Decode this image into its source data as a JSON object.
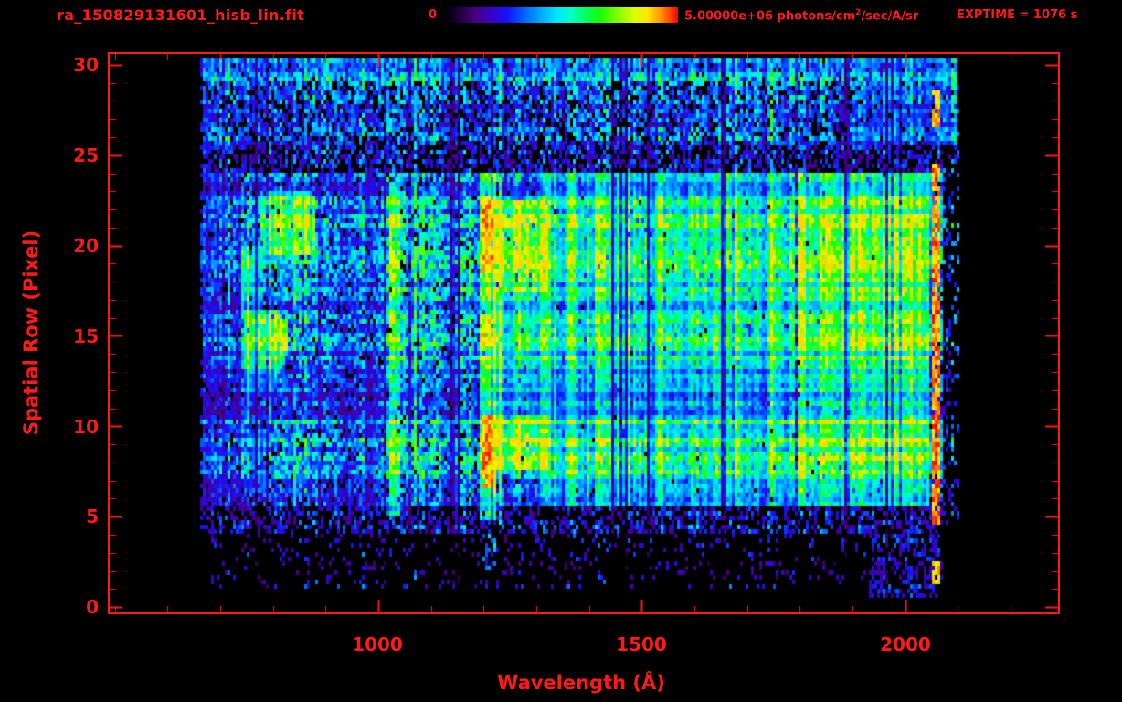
{
  "colors": {
    "accent": "#ff1a1a",
    "background": "#000000"
  },
  "header": {
    "filename": "ra_150829131601_hisb_lin.fit",
    "colorbar_min": "0",
    "colorbar_max_pre": "5.00000e+06 photons/cm",
    "colorbar_max_sup": "2",
    "colorbar_max_post": "/sec/A/sr",
    "exptime": "EXPTIME = 1076 s"
  },
  "chart_data": {
    "type": "heatmap",
    "title": "ra_150829131601_hisb_lin.fit",
    "xlabel": "Wavelength (Å)",
    "ylabel": "Spatial Row (Pixel)",
    "x_range": [
      490,
      2290
    ],
    "y_range": [
      -0.3,
      30.6
    ],
    "x_ticks": [
      1000,
      1500,
      2000
    ],
    "x_minor_step": 100,
    "y_ticks": [
      0,
      5,
      10,
      15,
      20,
      25,
      30
    ],
    "y_minor_step": 1,
    "frame_color": "#ff1a1a",
    "colorbar": {
      "min": 0,
      "max": 5000000,
      "units": "photons/cm2/sec/A/sr",
      "exptime_s": 1076
    },
    "colormap": [
      [
        0.0,
        "#000000"
      ],
      [
        0.06,
        "#1c0038"
      ],
      [
        0.13,
        "#460080"
      ],
      [
        0.2,
        "#3a00c8"
      ],
      [
        0.27,
        "#1414ff"
      ],
      [
        0.34,
        "#0064ff"
      ],
      [
        0.41,
        "#00aaff"
      ],
      [
        0.48,
        "#00e6ff"
      ],
      [
        0.54,
        "#00ffc8"
      ],
      [
        0.6,
        "#00ff64"
      ],
      [
        0.67,
        "#1aff00"
      ],
      [
        0.74,
        "#80ff00"
      ],
      [
        0.81,
        "#d8ff00"
      ],
      [
        0.87,
        "#ffe600"
      ],
      [
        0.93,
        "#ff8c00"
      ],
      [
        1.0,
        "#ff0000"
      ]
    ],
    "row_profile": [
      0.9,
      0.9,
      0.9,
      0.9,
      0.95,
      0.9,
      0.95,
      1.1,
      1.2,
      1.25,
      1.15,
      0.95,
      0.9,
      0.95,
      1.05,
      1.15,
      1.05,
      0.95,
      1.05,
      1.2,
      1.25,
      1.2,
      1.15,
      1.0,
      0.9,
      0.9,
      0.95,
      0.9,
      0.95,
      1.0,
      0.95
    ],
    "background_bands": [
      {
        "wav": [
          680,
          2070
        ],
        "rows": [
          1,
          4
        ],
        "base": 0.22,
        "density": 0.12
      },
      {
        "wav": [
          670,
          2070
        ],
        "rows": [
          4,
          5.5
        ],
        "base": 0.3,
        "density": 0.5
      },
      {
        "wav": [
          665,
          2070
        ],
        "rows": [
          5.5,
          24
        ],
        "base": 0.38,
        "density": 0.92
      },
      {
        "wav": [
          665,
          2075
        ],
        "rows": [
          24,
          25.5
        ],
        "base": 0.27,
        "density": 0.55
      },
      {
        "wav": [
          665,
          2100
        ],
        "rows": [
          25.5,
          30.3
        ],
        "base": 0.33,
        "density": 0.75
      },
      {
        "wav": [
          665,
          2100
        ],
        "rows": [
          29,
          30.3
        ],
        "base": 0.36,
        "density": 0.85
      }
    ],
    "dim_regions": [
      {
        "wav": [
          665,
          742
        ],
        "rows": [
          5.5,
          24
        ],
        "mult": 0.7
      },
      {
        "wav": [
          868,
          1016
        ],
        "rows": [
          5.5,
          24
        ],
        "mult": 0.75
      }
    ],
    "features": [
      {
        "wav": [
          660,
          681
        ],
        "rows": [
          4,
          30.3
        ],
        "intensity": 0.32,
        "density": 0.5
      },
      {
        "wav": [
          744,
          813
        ],
        "rows": [
          13,
          16.5
        ],
        "intensity": 0.66,
        "density": 0.95
      },
      {
        "wav": [
          760,
          830
        ],
        "rows": [
          14,
          16
        ],
        "intensity": 0.72,
        "density": 0.95
      },
      {
        "wav": [
          739,
          779
        ],
        "rows": [
          16,
          20
        ],
        "intensity": 0.5,
        "density": 0.9
      },
      {
        "wav": [
          778,
          882
        ],
        "rows": [
          19.5,
          23
        ],
        "intensity": 0.64,
        "density": 0.95
      },
      {
        "wav": [
          744,
          800
        ],
        "rows": [
          11.5,
          13.5
        ],
        "intensity": 0.45,
        "density": 0.85
      },
      {
        "wav": [
          1022,
          1042
        ],
        "rows": [
          5,
          23.5
        ],
        "intensity": 0.55,
        "density": 0.92
      },
      {
        "wav": [
          1193,
          1226
        ],
        "rows": [
          4.8,
          24
        ],
        "intensity": 0.72,
        "density": 0.97
      },
      {
        "wav": [
          1198,
          1222
        ],
        "rows": [
          2,
          4
        ],
        "intensity": 0.45,
        "density": 0.5
      },
      {
        "wav": [
          1198,
          1220
        ],
        "rows": [
          6.5,
          10.5
        ],
        "intensity": 0.95,
        "density": 0.95
      },
      {
        "wav": [
          1198,
          1220
        ],
        "rows": [
          14.5,
          16
        ],
        "intensity": 0.9,
        "density": 0.9
      },
      {
        "wav": [
          1198,
          1220
        ],
        "rows": [
          18.5,
          22.5
        ],
        "intensity": 0.95,
        "density": 0.95
      },
      {
        "wav": [
          1198,
          1220
        ],
        "rows": [
          11,
          14
        ],
        "intensity": 0.8,
        "density": 0.9
      },
      {
        "wav": [
          1226,
          1323
        ],
        "rows": [
          7.5,
          10.5
        ],
        "intensity": 0.7,
        "density": 0.95
      },
      {
        "wav": [
          1226,
          1323
        ],
        "rows": [
          17.5,
          22.5
        ],
        "intensity": 0.7,
        "density": 0.95
      },
      {
        "wav": [
          1226,
          1323
        ],
        "rows": [
          10.5,
          17.5
        ],
        "intensity": 0.52,
        "density": 0.9
      },
      {
        "wav": [
          1300,
          1790
        ],
        "rows": [
          5.5,
          24
        ],
        "intensity": 0.42,
        "density": 0.9
      },
      {
        "wav": [
          1316,
          1330
        ],
        "rows": [
          5.5,
          24
        ],
        "intensity": 0.55,
        "density": 0.9
      },
      {
        "wav": [
          1360,
          1374
        ],
        "rows": [
          5.5,
          24
        ],
        "intensity": 0.52,
        "density": 0.9
      },
      {
        "wav": [
          1410,
          1425
        ],
        "rows": [
          5.5,
          24
        ],
        "intensity": 0.55,
        "density": 0.9
      },
      {
        "wav": [
          1455,
          1480
        ],
        "rows": [
          5.5,
          24
        ],
        "intensity": 0.6,
        "density": 0.92
      },
      {
        "wav": [
          1525,
          1540
        ],
        "rows": [
          5.5,
          24
        ],
        "intensity": 0.52,
        "density": 0.9
      },
      {
        "wav": [
          1568,
          1580
        ],
        "rows": [
          5.5,
          24
        ],
        "intensity": 0.5,
        "density": 0.9
      },
      {
        "wav": [
          1620,
          1645
        ],
        "rows": [
          5.5,
          24
        ],
        "intensity": 0.55,
        "density": 0.9
      },
      {
        "wav": [
          1680,
          1695
        ],
        "rows": [
          5.5,
          24
        ],
        "intensity": 0.48,
        "density": 0.9
      },
      {
        "wav": [
          1750,
          1770
        ],
        "rows": [
          5.5,
          24
        ],
        "intensity": 0.5,
        "density": 0.9
      },
      {
        "wav": [
          1795,
          1815
        ],
        "rows": [
          5.5,
          24
        ],
        "intensity": 0.62,
        "density": 0.95
      },
      {
        "wav": [
          1815,
          2048
        ],
        "rows": [
          5.5,
          24
        ],
        "intensity": 0.58,
        "density": 0.95
      },
      {
        "wav": [
          1850,
          2048
        ],
        "rows": [
          8,
          23.5
        ],
        "intensity": 0.64,
        "density": 0.95
      },
      {
        "wav": [
          1900,
          2100
        ],
        "rows": [
          25.5,
          30.3
        ],
        "intensity": 0.34,
        "density": 0.7
      },
      {
        "wav": [
          1930,
          2065
        ],
        "rows": [
          0.5,
          4
        ],
        "intensity": 0.3,
        "density": 0.45
      },
      {
        "wav": [
          2050,
          2066
        ],
        "rows": [
          4.5,
          24.5
        ],
        "intensity": 0.97,
        "density": 0.9
      },
      {
        "wav": [
          2050,
          2066
        ],
        "rows": [
          26.5,
          28.5
        ],
        "intensity": 0.93,
        "density": 0.8
      },
      {
        "wav": [
          2050,
          2066
        ],
        "rows": [
          1.3,
          2.6
        ],
        "intensity": 0.9,
        "density": 0.8
      },
      {
        "wav": [
          2066,
          2105
        ],
        "rows": [
          4.5,
          30
        ],
        "intensity": 0.28,
        "density": 0.2
      }
    ]
  }
}
